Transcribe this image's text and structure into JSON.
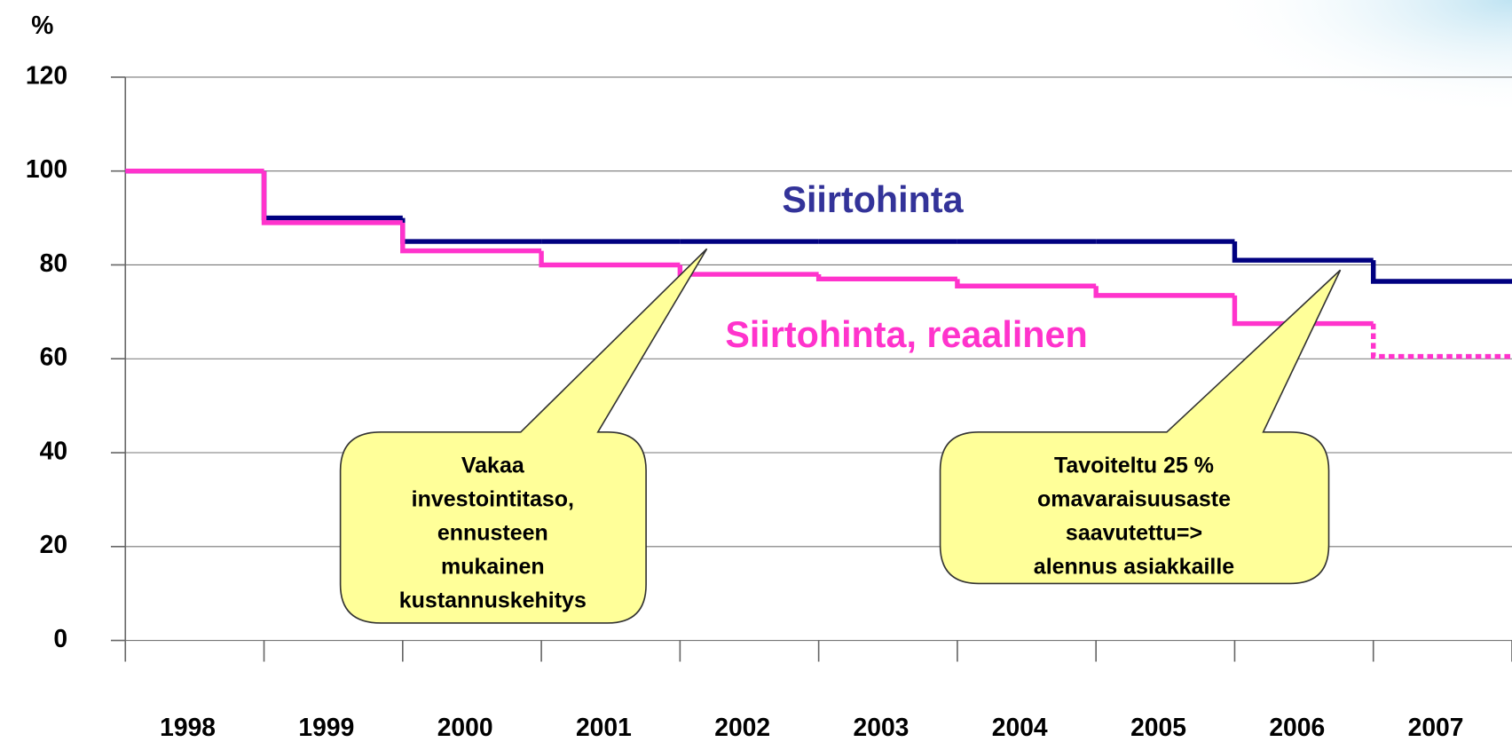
{
  "chart_data": {
    "type": "step",
    "y_label": "%",
    "categories": [
      "1998",
      "1999",
      "2000",
      "2001",
      "2002",
      "2003",
      "2004",
      "2005",
      "2006",
      "2007"
    ],
    "series": [
      {
        "name": "Siirtohinta",
        "color": "#000080",
        "label_color": "#333399",
        "values": [
          100,
          90,
          85,
          85,
          85,
          85,
          85,
          85,
          81,
          76.5
        ]
      },
      {
        "name": "Siirtohinta, reaalinen",
        "color": "#ff33cc",
        "label_color": "#ff33cc",
        "values": [
          100,
          89,
          83,
          80,
          78,
          77,
          75.5,
          73.5,
          67.5,
          60.5
        ],
        "dotted_from": "2007"
      }
    ],
    "ylim": [
      0,
      120
    ],
    "yticks": [
      0,
      20,
      40,
      60,
      80,
      100,
      120
    ],
    "grid": true,
    "annotations": [
      {
        "lines": [
          "Vakaa",
          "investointitaso,",
          "ennusteen",
          "mukainen",
          "kustannuskehitys"
        ]
      },
      {
        "lines": [
          "Tavoiteltu 25 %",
          "omavaraisuusaste",
          "saavutettu=>",
          "alennus asiakkaille"
        ]
      }
    ]
  }
}
